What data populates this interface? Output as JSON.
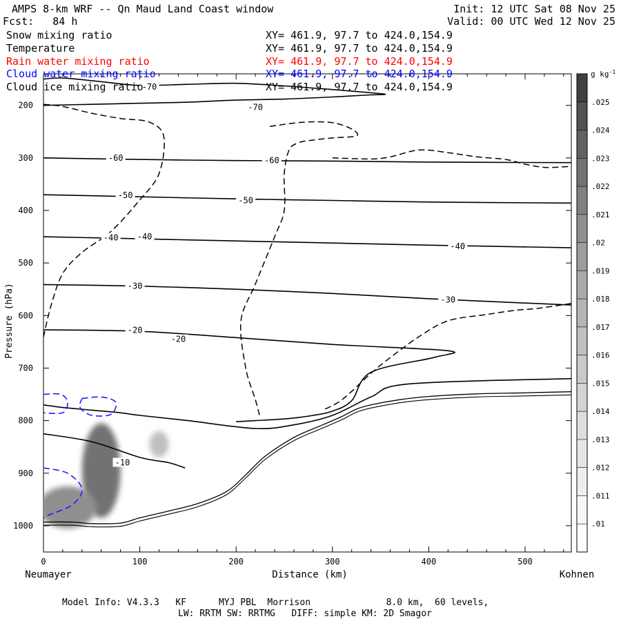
{
  "header": {
    "title": "AMPS 8-km WRF -- Qn Maud Land Coast window",
    "init": "Init: 12 UTC Sat 08 Nov 25",
    "fcst": "Fcst:   84 h",
    "valid": "Valid: 00 UTC Wed 12 Nov 25"
  },
  "legend": [
    {
      "label": "Snow mixing ratio",
      "xy": "XY= 461.9, 97.7 to 424.0,154.9",
      "color": "#000000"
    },
    {
      "label": "Temperature",
      "xy": "XY= 461.9, 97.7 to 424.0,154.9",
      "color": "#000000"
    },
    {
      "label": "Rain water mixing ratio",
      "xy": "XY= 461.9, 97.7 to 424.0,154.9",
      "color": "#ff0000"
    },
    {
      "label": "Cloud water mixing ratio",
      "xy": "XY= 461.9, 97.7 to 424.0,154.9",
      "color": "#0000ff"
    },
    {
      "label": "Cloud ice mixing ratio",
      "xy": "XY= 461.9, 97.7 to 424.0,154.9",
      "color": "#000000"
    }
  ],
  "footer": {
    "line1": "Model Info: V4.3.3   KF      MYJ PBL  Morrison              8.0 km,  60 levels,",
    "line2": "LW: RRTM SW: RRTMG   DIFF: simple KM: 2D Smagor"
  },
  "chart_data": {
    "type": "cross-section contour",
    "xlabel": "Distance (km)",
    "ylabel": "Pressure (hPa)",
    "xlim": [
      0,
      548
    ],
    "ylim": [
      1050,
      140
    ],
    "x_ticks": [
      0,
      100,
      200,
      300,
      400,
      500
    ],
    "y_ticks": [
      200,
      300,
      400,
      500,
      600,
      700,
      800,
      900,
      1000
    ],
    "left_endpoint": "Neumayer",
    "right_endpoint": "Kohnen",
    "colorbar": {
      "unit": "g kg",
      "unit_exp": "-1",
      "ticks": [
        ".01",
        ".011",
        ".012",
        ".013",
        ".014",
        ".015",
        ".016",
        ".017",
        ".018",
        ".019",
        ".02",
        ".021",
        ".022",
        ".023",
        ".024",
        ".025"
      ],
      "colors": [
        "#ffffff",
        "#f7f7f7",
        "#eeeeee",
        "#e6e6e6",
        "#dddddd",
        "#d3d3d3",
        "#c9c9c9",
        "#bfbfbf",
        "#b4b4b4",
        "#a9a9a9",
        "#9c9c9c",
        "#8f8f8f",
        "#818181",
        "#727272",
        "#626262",
        "#525252",
        "#404040"
      ]
    },
    "temperature_contours": [
      {
        "level": "-70",
        "label_positions": [
          [
            110,
            165
          ],
          [
            220,
            204
          ]
        ],
        "points": [
          [
            0,
            150
          ],
          [
            20,
            148
          ],
          [
            60,
            155
          ],
          [
            100,
            162
          ],
          [
            150,
            160
          ],
          [
            200,
            158
          ],
          [
            250,
            163
          ],
          [
            300,
            170
          ],
          [
            340,
            176
          ],
          [
            355,
            179
          ],
          [
            340,
            180
          ],
          [
            300,
            184
          ],
          [
            250,
            188
          ],
          [
            200,
            190
          ],
          [
            150,
            194
          ],
          [
            100,
            196
          ],
          [
            50,
            198
          ],
          [
            0,
            200
          ]
        ]
      },
      {
        "level": "-60",
        "label_positions": [
          [
            75,
            300
          ],
          [
            237,
            305
          ]
        ],
        "points": [
          [
            0,
            300
          ],
          [
            100,
            303
          ],
          [
            200,
            305
          ],
          [
            300,
            306
          ],
          [
            400,
            308
          ],
          [
            548,
            309
          ]
        ]
      },
      {
        "level": "-50",
        "label_positions": [
          [
            85,
            371
          ],
          [
            210,
            381
          ]
        ],
        "points": [
          [
            0,
            370
          ],
          [
            100,
            374
          ],
          [
            200,
            378
          ],
          [
            300,
            381
          ],
          [
            400,
            384
          ],
          [
            548,
            386
          ]
        ]
      },
      {
        "level": "-40",
        "label_positions": [
          [
            70,
            452
          ],
          [
            105,
            450
          ],
          [
            430,
            468
          ]
        ],
        "points": [
          [
            0,
            450
          ],
          [
            100,
            454
          ],
          [
            200,
            458
          ],
          [
            300,
            462
          ],
          [
            400,
            466
          ],
          [
            548,
            471
          ]
        ]
      },
      {
        "level": "-30",
        "label_positions": [
          [
            95,
            544
          ],
          [
            420,
            570
          ]
        ],
        "points": [
          [
            0,
            541
          ],
          [
            100,
            544
          ],
          [
            200,
            550
          ],
          [
            300,
            558
          ],
          [
            400,
            568
          ],
          [
            548,
            580
          ]
        ]
      },
      {
        "level": "-20",
        "label_positions": [
          [
            95,
            628
          ],
          [
            140,
            645
          ]
        ],
        "points": [
          [
            0,
            627
          ],
          [
            100,
            630
          ],
          [
            200,
            642
          ],
          [
            300,
            655
          ],
          [
            420,
            667
          ],
          [
            405,
            680
          ],
          [
            340,
            708
          ],
          [
            320,
            762
          ],
          [
            300,
            782
          ],
          [
            280,
            790
          ],
          [
            260,
            795
          ],
          [
            240,
            798
          ],
          [
            220,
            800
          ],
          [
            200,
            802
          ]
        ]
      },
      {
        "level": "-10",
        "label_positions": [
          [
            82,
            880
          ]
        ],
        "points": [
          [
            0,
            825
          ],
          [
            50,
            840
          ],
          [
            100,
            870
          ],
          [
            130,
            880
          ],
          [
            147,
            890
          ]
        ]
      },
      {
        "level": "",
        "label_positions": [],
        "points": [
          [
            0,
            770
          ],
          [
            20,
            775
          ],
          [
            50,
            780
          ],
          [
            80,
            785
          ],
          [
            100,
            790
          ],
          [
            150,
            800
          ],
          [
            220,
            815
          ],
          [
            260,
            808
          ],
          [
            300,
            790
          ],
          [
            340,
            755
          ],
          [
            380,
            730
          ],
          [
            548,
            720
          ]
        ]
      }
    ],
    "terrain": {
      "points": [
        [
          0,
          993
        ],
        [
          30,
          993
        ],
        [
          50,
          996
        ],
        [
          80,
          995
        ],
        [
          100,
          985
        ],
        [
          130,
          972
        ],
        [
          160,
          958
        ],
        [
          190,
          935
        ],
        [
          210,
          903
        ],
        [
          230,
          868
        ],
        [
          260,
          832
        ],
        [
          290,
          808
        ],
        [
          310,
          792
        ],
        [
          325,
          778
        ],
        [
          340,
          770
        ],
        [
          370,
          760
        ],
        [
          400,
          754
        ],
        [
          450,
          749
        ],
        [
          500,
          747
        ],
        [
          548,
          745
        ]
      ]
    },
    "snow_dashed_contours": [
      [
        [
          0,
          641
        ],
        [
          8,
          580
        ],
        [
          20,
          520
        ],
        [
          40,
          480
        ],
        [
          70,
          440
        ],
        [
          100,
          380
        ],
        [
          120,
          330
        ],
        [
          125,
          260
        ],
        [
          110,
          232
        ],
        [
          80,
          225
        ],
        [
          50,
          215
        ],
        [
          20,
          202
        ],
        [
          0,
          198
        ]
      ],
      [
        [
          235,
          240
        ],
        [
          270,
          232
        ],
        [
          300,
          233
        ],
        [
          320,
          245
        ],
        [
          325,
          258
        ],
        [
          300,
          262
        ],
        [
          280,
          266
        ],
        [
          265,
          271
        ],
        [
          255,
          285
        ],
        [
          250,
          330
        ],
        [
          250,
          400
        ],
        [
          240,
          450
        ],
        [
          220,
          540
        ],
        [
          205,
          610
        ],
        [
          210,
          700
        ],
        [
          220,
          760
        ],
        [
          225,
          795
        ]
      ],
      [
        [
          300,
          300
        ],
        [
          340,
          302
        ],
        [
          360,
          298
        ],
        [
          390,
          285
        ],
        [
          420,
          290
        ],
        [
          450,
          298
        ],
        [
          480,
          303
        ],
        [
          500,
          312
        ],
        [
          520,
          318
        ],
        [
          540,
          317
        ],
        [
          548,
          316
        ]
      ],
      [
        [
          548,
          577
        ],
        [
          530,
          582
        ],
        [
          510,
          587
        ],
        [
          490,
          590
        ],
        [
          460,
          598
        ],
        [
          420,
          610
        ],
        [
          390,
          640
        ],
        [
          360,
          680
        ],
        [
          340,
          710
        ],
        [
          310,
          760
        ],
        [
          290,
          780
        ]
      ]
    ],
    "cloud_water_contours": [
      [
        [
          0,
          750
        ],
        [
          18,
          750
        ],
        [
          25,
          765
        ],
        [
          20,
          785
        ],
        [
          0,
          785
        ]
      ],
      [
        [
          40,
          758
        ],
        [
          60,
          755
        ],
        [
          75,
          765
        ],
        [
          70,
          788
        ],
        [
          50,
          790
        ],
        [
          38,
          775
        ],
        [
          40,
          758
        ]
      ],
      [
        [
          0,
          890
        ],
        [
          25,
          900
        ],
        [
          40,
          930
        ],
        [
          30,
          960
        ],
        [
          5,
          980
        ],
        [
          0,
          985
        ]
      ]
    ],
    "snow_shaded_regions": [
      {
        "x": 60,
        "p": 895,
        "rx": 20,
        "ry": 90,
        "value": ".022"
      },
      {
        "x": 25,
        "p": 965,
        "rx": 30,
        "ry": 40,
        "value": ".02"
      },
      {
        "x": 120,
        "p": 845,
        "rx": 10,
        "ry": 25,
        "value": ".016"
      }
    ]
  }
}
